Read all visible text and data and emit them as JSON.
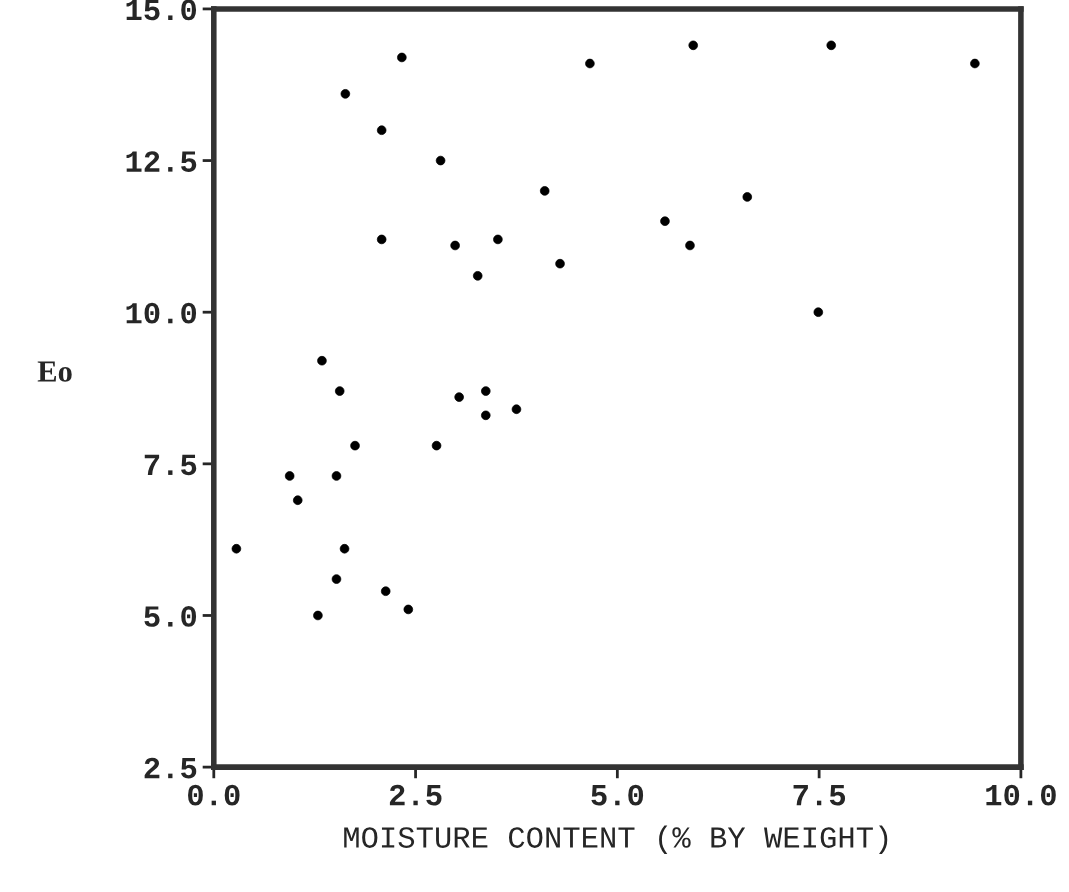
{
  "chart_data": {
    "type": "scatter",
    "xlabel": "MOISTURE CONTENT (% BY WEIGHT)",
    "ylabel": "Eo",
    "x": [
      0.28,
      0.94,
      1.04,
      1.29,
      1.34,
      1.52,
      1.52,
      1.56,
      1.62,
      1.63,
      1.75,
      2.08,
      2.08,
      2.13,
      2.33,
      2.41,
      2.76,
      2.81,
      2.99,
      3.04,
      3.27,
      3.37,
      3.37,
      3.52,
      3.75,
      4.1,
      4.29,
      4.66,
      5.59,
      5.9,
      5.94,
      6.61,
      7.49,
      7.65,
      9.43
    ],
    "series": [
      {
        "color": "#000000",
        "values": [
          6.1,
          7.3,
          6.9,
          5.0,
          9.2,
          7.3,
          5.6,
          8.7,
          6.1,
          13.6,
          7.8,
          13.0,
          11.2,
          5.4,
          14.2,
          5.1,
          7.8,
          12.5,
          11.1,
          8.6,
          10.6,
          8.7,
          8.3,
          11.2,
          8.4,
          12.0,
          10.8,
          14.1,
          11.5,
          11.1,
          14.4,
          11.9,
          10.0,
          14.4,
          14.1
        ]
      }
    ],
    "marker": "circle",
    "xlim": [
      0,
      10
    ],
    "xticks": [
      {
        "value": 0,
        "label": "0.0"
      },
      2.5,
      {
        "value": 5,
        "label": "5.0"
      },
      7.5,
      {
        "value": 10,
        "label": "10.0"
      }
    ],
    "ylim": [
      2.5,
      15
    ],
    "yticks": [
      2.5,
      {
        "value": 5,
        "label": "5.0"
      },
      7.5,
      {
        "value": 10,
        "label": "10.0"
      },
      12.5,
      {
        "value": 15,
        "label": "15.0"
      }
    ],
    "grid": false
  }
}
